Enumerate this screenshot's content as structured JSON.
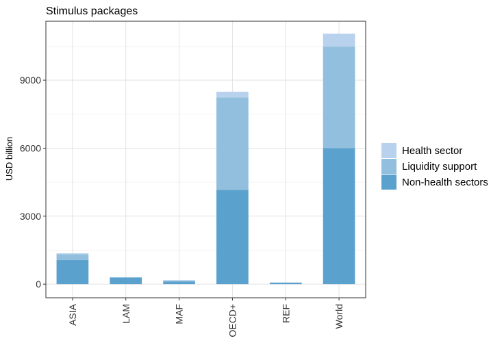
{
  "chart_data": {
    "type": "bar",
    "stacked": true,
    "title": "Stimulus packages",
    "xlabel": "",
    "ylabel": "USD billion",
    "categories": [
      "ASIA",
      "LAM",
      "MAF",
      "OECD+",
      "REF",
      "World"
    ],
    "series": [
      {
        "name": "Non-health sectors",
        "color": "#5ba1cd",
        "values": [
          1060,
          290,
          110,
          4160,
          70,
          6000
        ]
      },
      {
        "name": "Liquidity support",
        "color": "#91bfdd",
        "values": [
          260,
          10,
          50,
          4080,
          0,
          4480
        ]
      },
      {
        "name": "Health sector",
        "color": "#b8d1ec",
        "values": [
          40,
          10,
          20,
          250,
          10,
          570
        ]
      }
    ],
    "legend_order": [
      "Health sector",
      "Liquidity support",
      "Non-health sectors"
    ],
    "legend_position": "right",
    "yticks": [
      0,
      3000,
      6000,
      9000
    ],
    "ylim": [
      -600,
      11600
    ],
    "grid": true
  }
}
